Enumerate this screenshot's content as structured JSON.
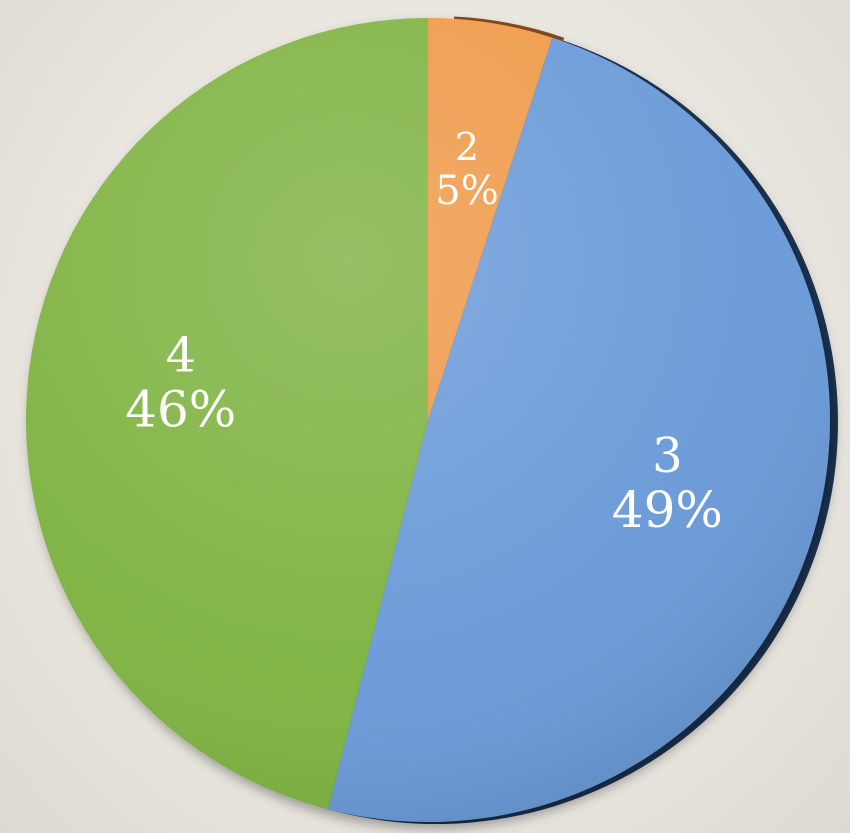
{
  "chart_data": {
    "type": "pie",
    "title": "",
    "slices": [
      {
        "label": "2",
        "value": 5,
        "percent_label": "5%",
        "color": "#ef9a4a"
      },
      {
        "label": "3",
        "value": 49,
        "percent_label": "49%",
        "color": "#6b9ad8"
      },
      {
        "label": "4",
        "value": 46,
        "percent_label": "46%",
        "color": "#7fb343"
      }
    ],
    "hidden_slice_colors": [
      "#8a4a1c",
      "#1d3557"
    ],
    "legend": "none"
  }
}
